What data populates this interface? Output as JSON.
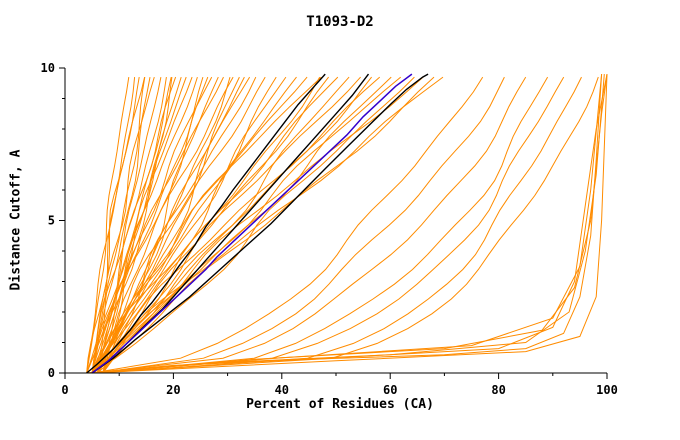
{
  "chart_data": {
    "type": "line",
    "title": "T1093-D2",
    "xlabel": "Percent of Residues (CA)",
    "ylabel": "Distance Cutoff, A",
    "xlim": [
      0,
      100
    ],
    "ylim": [
      0,
      10
    ],
    "xticks": [
      0,
      20,
      40,
      60,
      80,
      100
    ],
    "xticks_minor": [
      10,
      30,
      50,
      70,
      90
    ],
    "yticks": [
      0,
      5,
      10
    ],
    "yticks_minor": [
      1,
      2,
      3,
      4,
      6,
      7,
      8,
      9
    ],
    "grid": false,
    "legend": "none",
    "colors": {
      "models": "#ff8c00",
      "reference": "#000000",
      "highlight": "#3300cc",
      "axis": "#000000",
      "background": "#ffffff"
    },
    "ensemble_curves": {
      "format": [
        "start_x",
        "top_x",
        "shape_k",
        "wiggle",
        "phase"
      ],
      "curves": [
        [
          4,
          12,
          1.0,
          0.5,
          0.3
        ],
        [
          5,
          13,
          0.95,
          0.6,
          1.2
        ],
        [
          4,
          14,
          1.1,
          0.5,
          2.4
        ],
        [
          6,
          15,
          1.0,
          0.7,
          3.1
        ],
        [
          5,
          16,
          0.9,
          0.6,
          4.0
        ],
        [
          4,
          17,
          1.15,
          0.8,
          5.2
        ],
        [
          6,
          18,
          1.0,
          0.5,
          0.9
        ],
        [
          5,
          19,
          0.85,
          0.7,
          1.8
        ],
        [
          7,
          20,
          1.05,
          0.6,
          2.7
        ],
        [
          5,
          21,
          1.2,
          0.8,
          3.6
        ],
        [
          4,
          22,
          0.95,
          0.6,
          4.5
        ],
        [
          6,
          23,
          1.1,
          0.7,
          5.5
        ],
        [
          5,
          15,
          1.3,
          0.9,
          0.6
        ],
        [
          6,
          20,
          0.75,
          0.8,
          2.2
        ],
        [
          4,
          24,
          1.0,
          0.9,
          0.4
        ],
        [
          6,
          25,
          1.15,
          0.8,
          1.5
        ],
        [
          5,
          26,
          0.9,
          1.0,
          2.6
        ],
        [
          7,
          27,
          1.05,
          0.9,
          3.7
        ],
        [
          5,
          28,
          1.25,
          0.8,
          4.8
        ],
        [
          6,
          29,
          0.95,
          1.0,
          5.9
        ],
        [
          4,
          30,
          1.1,
          0.9,
          0.8
        ],
        [
          6,
          31,
          0.85,
          1.1,
          1.9
        ],
        [
          5,
          32,
          1.2,
          0.9,
          3.0
        ],
        [
          7,
          33,
          1.0,
          1.0,
          4.1
        ],
        [
          5,
          34,
          0.9,
          1.2,
          5.2
        ],
        [
          6,
          35,
          1.1,
          0.9,
          0.2
        ],
        [
          5,
          36,
          1.0,
          1.1,
          1.3
        ],
        [
          6,
          38,
          1.15,
          1.2,
          2.4
        ],
        [
          5,
          40,
          0.95,
          1.3,
          3.5
        ],
        [
          7,
          42,
          1.1,
          1.2,
          4.6
        ],
        [
          5,
          44,
          1.0,
          1.4,
          5.7
        ],
        [
          6,
          46,
          1.2,
          1.2,
          0.6
        ],
        [
          5,
          48,
          0.9,
          1.5,
          1.7
        ],
        [
          7,
          50,
          1.05,
          1.3,
          2.8
        ],
        [
          5,
          52,
          1.15,
          1.4,
          3.9
        ],
        [
          6,
          54,
          1.0,
          1.5,
          5.0
        ],
        [
          5,
          49,
          1.3,
          1.3,
          0.1
        ],
        [
          6,
          56,
          1.1,
          1.5,
          1.1
        ],
        [
          5,
          58,
          0.95,
          1.6,
          2.2
        ],
        [
          7,
          60,
          1.2,
          1.4,
          3.3
        ],
        [
          5,
          62,
          1.0,
          1.7,
          4.4
        ],
        [
          6,
          64,
          1.1,
          1.5,
          5.5
        ],
        [
          5,
          66,
          0.9,
          1.8,
          0.5
        ],
        [
          7,
          68,
          1.15,
          1.5,
          1.6
        ],
        [
          6,
          70,
          1.0,
          1.7,
          2.7
        ],
        [
          5,
          72,
          1.1,
          1.6,
          3.8
        ],
        [
          5,
          78,
          0.5,
          1.5,
          0.9
        ],
        [
          6,
          82,
          0.45,
          1.6,
          2.0
        ],
        [
          5,
          86,
          0.4,
          1.4,
          3.1
        ],
        [
          6,
          90,
          0.35,
          1.5,
          4.2
        ],
        [
          5,
          93,
          0.32,
          1.3,
          5.3
        ],
        [
          6,
          96,
          0.28,
          1.2,
          0.4
        ],
        [
          5,
          99,
          0.25,
          1.0,
          1.5
        ]
      ]
    },
    "ensemble_extra": [
      [
        [
          4,
          0
        ],
        [
          20,
          0.25
        ],
        [
          45,
          0.45
        ],
        [
          70,
          0.6
        ],
        [
          85,
          0.8
        ],
        [
          92,
          1.3
        ],
        [
          95,
          2.5
        ],
        [
          97,
          4.5
        ],
        [
          98,
          7
        ],
        [
          99,
          9.8
        ]
      ],
      [
        [
          5,
          0
        ],
        [
          25,
          0.3
        ],
        [
          55,
          0.55
        ],
        [
          80,
          0.8
        ],
        [
          90,
          1.5
        ],
        [
          94,
          3
        ],
        [
          96,
          5.5
        ],
        [
          98,
          8
        ],
        [
          100,
          9.8
        ]
      ],
      [
        [
          4,
          0
        ],
        [
          30,
          0.35
        ],
        [
          60,
          0.6
        ],
        [
          85,
          1.0
        ],
        [
          93,
          2
        ],
        [
          96,
          4
        ],
        [
          98,
          6.5
        ],
        [
          99.5,
          9.8
        ]
      ],
      [
        [
          5,
          0
        ],
        [
          35,
          0.45
        ],
        [
          70,
          0.8
        ],
        [
          88,
          1.4
        ],
        [
          94,
          2.8
        ],
        [
          97,
          5
        ],
        [
          99,
          8.5
        ],
        [
          100,
          9.8
        ]
      ],
      [
        [
          4,
          0
        ],
        [
          40,
          0.5
        ],
        [
          75,
          0.9
        ],
        [
          90,
          1.8
        ],
        [
          95,
          3.5
        ],
        [
          97,
          6
        ],
        [
          99,
          9.8
        ]
      ],
      [
        [
          5,
          0
        ],
        [
          50,
          0.4
        ],
        [
          85,
          0.7
        ],
        [
          95,
          1.2
        ],
        [
          98,
          2.5
        ],
        [
          99,
          5
        ],
        [
          100,
          9.8
        ]
      ]
    ],
    "reference_curves": [
      {
        "points": [
          [
            4,
            0
          ],
          [
            6,
            0.3
          ],
          [
            9,
            0.8
          ],
          [
            12,
            1.4
          ],
          [
            14,
            1.9
          ],
          [
            16,
            2.3
          ],
          [
            19,
            3.0
          ],
          [
            21,
            3.5
          ],
          [
            24,
            4.2
          ],
          [
            26,
            4.8
          ],
          [
            29,
            5.5
          ],
          [
            31,
            6.0
          ],
          [
            34,
            6.7
          ],
          [
            37,
            7.4
          ],
          [
            40,
            8.1
          ],
          [
            43,
            8.8
          ],
          [
            46,
            9.4
          ],
          [
            48,
            9.8
          ]
        ]
      },
      {
        "points": [
          [
            5,
            0
          ],
          [
            8,
            0.4
          ],
          [
            11,
            0.9
          ],
          [
            15,
            1.6
          ],
          [
            18,
            2.1
          ],
          [
            22,
            2.9
          ],
          [
            25,
            3.5
          ],
          [
            29,
            4.3
          ],
          [
            32,
            4.9
          ],
          [
            36,
            5.7
          ],
          [
            39,
            6.3
          ],
          [
            43,
            7.1
          ],
          [
            46,
            7.7
          ],
          [
            50,
            8.5
          ],
          [
            53,
            9.1
          ],
          [
            56,
            9.8
          ]
        ]
      },
      {
        "points": [
          [
            5,
            0
          ],
          [
            9,
            0.5
          ],
          [
            13,
            1.1
          ],
          [
            18,
            1.8
          ],
          [
            23,
            2.5
          ],
          [
            28,
            3.3
          ],
          [
            33,
            4.1
          ],
          [
            38,
            4.9
          ],
          [
            43,
            5.8
          ],
          [
            48,
            6.7
          ],
          [
            52,
            7.4
          ],
          [
            56,
            8.1
          ],
          [
            60,
            8.8
          ],
          [
            63,
            9.3
          ],
          [
            66,
            9.7
          ],
          [
            67,
            9.8
          ]
        ]
      }
    ],
    "highlight_curve": {
      "points": [
        [
          5,
          0
        ],
        [
          8,
          0.4
        ],
        [
          11,
          0.9
        ],
        [
          14,
          1.4
        ],
        [
          17,
          1.9
        ],
        [
          20,
          2.4
        ],
        [
          23,
          2.9
        ],
        [
          26,
          3.4
        ],
        [
          28,
          3.8
        ],
        [
          31,
          4.3
        ],
        [
          34,
          4.8
        ],
        [
          37,
          5.3
        ],
        [
          40,
          5.8
        ],
        [
          43,
          6.3
        ],
        [
          46,
          6.8
        ],
        [
          49,
          7.3
        ],
        [
          52,
          7.8
        ],
        [
          55,
          8.4
        ],
        [
          58,
          8.9
        ],
        [
          61,
          9.4
        ],
        [
          64,
          9.8
        ]
      ]
    }
  }
}
